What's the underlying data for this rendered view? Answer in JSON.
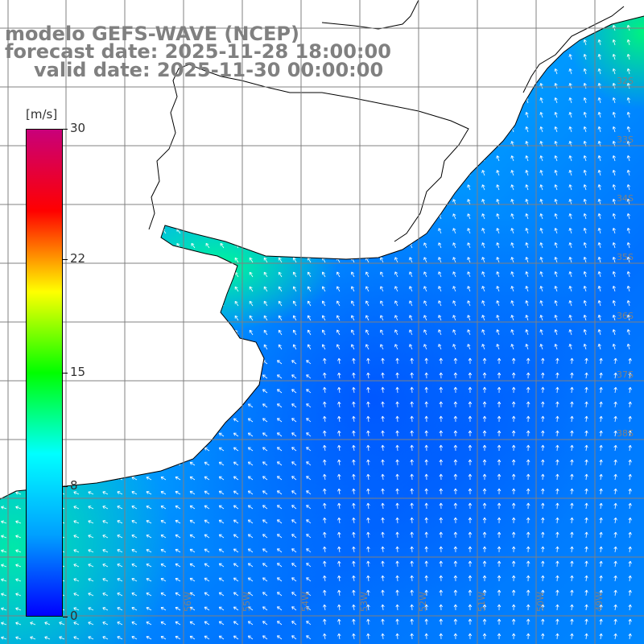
{
  "header": {
    "line1": "modelo GEFS-WAVE (NCEP)",
    "line2": "forecast date: 2025-11-28 18:00:00",
    "line3": "valid date: 2025-11-30 00:00:00"
  },
  "colorbar": {
    "unit": "[m/s]",
    "ticks": [
      "30",
      "22",
      "15",
      "8",
      "0"
    ],
    "tick_values": [
      30,
      22,
      15,
      8,
      0
    ],
    "min": 0,
    "max": 30,
    "colors": [
      "#0000ff",
      "#00a0ff",
      "#00ffff",
      "#00ff00",
      "#ffff00",
      "#ff0000",
      "#c8007a"
    ]
  },
  "grid": {
    "lat_labels": [
      "32S",
      "33S",
      "34S",
      "35S",
      "36S",
      "37S",
      "38S"
    ],
    "lon_labels": [
      "56W",
      "55W",
      "54W",
      "53W",
      "52W",
      "51W",
      "50W",
      "49W"
    ]
  },
  "colors": {
    "land": "#ffffff",
    "coast": "#000000",
    "grid": "#808080",
    "arrow": "#ffffff",
    "title": "#808080"
  }
}
